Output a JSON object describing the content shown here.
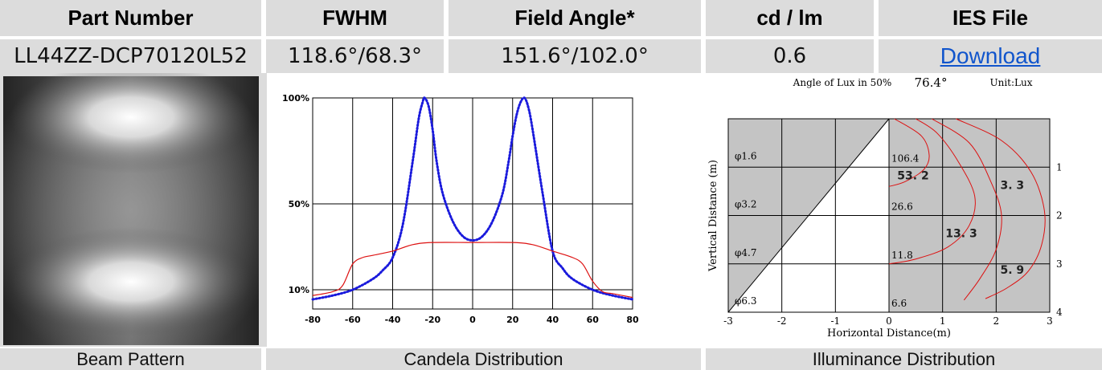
{
  "headers": {
    "part_number": "Part Number",
    "fwhm": "FWHM",
    "field_angle": "Field Angle*",
    "cd_lm": "cd / lm",
    "ies_file": "IES File"
  },
  "values": {
    "part_number": "LL44ZZ-DCP70120L52",
    "fwhm": "118.6°/68.3°",
    "field_angle": "151.6°/102.0°",
    "cd_lm": "0.6",
    "ies_file": "Download"
  },
  "footers": {
    "beam": "Beam Pattern",
    "candela": "Candela Distribution",
    "illuminance": "Illuminance Distribution"
  },
  "colors": {
    "header_bg": "#dcdcdc",
    "link": "#1155cc",
    "series_blue": "#1a1adc",
    "series_red": "#dd1111",
    "illum_shade": "#c4c4c4"
  },
  "chart_data": [
    {
      "type": "line",
      "panel": "candela",
      "title": "",
      "xlabel": "",
      "ylabel": "",
      "xlim": [
        -80,
        80
      ],
      "x_ticks": [
        -80,
        -60,
        -40,
        -20,
        0,
        20,
        40,
        60,
        80
      ],
      "y_ticks": [
        {
          "value": 10,
          "label": "10%"
        },
        {
          "value": 50,
          "label": "50%"
        },
        {
          "value": 100,
          "label": "100%"
        }
      ],
      "grid": true,
      "series": [
        {
          "color": "#1a1adc",
          "style": "dotted",
          "x": [
            -80,
            -70,
            -60,
            -50,
            -45,
            -40,
            -35,
            -30,
            -27,
            -25,
            -24,
            -22,
            -20,
            -18,
            -15,
            -10,
            -5,
            0,
            5,
            10,
            15,
            18,
            20,
            22,
            24,
            26,
            28,
            30,
            35,
            40,
            45,
            50,
            60,
            70,
            80
          ],
          "y": [
            5,
            7,
            10,
            15,
            19,
            25,
            40,
            70,
            90,
            98,
            100,
            96,
            85,
            70,
            55,
            42,
            35,
            33,
            35,
            42,
            55,
            70,
            82,
            92,
            98,
            100,
            95,
            85,
            55,
            28,
            20,
            15,
            10,
            7,
            5
          ]
        },
        {
          "color": "#dd1111",
          "style": "solid",
          "x": [
            -80,
            -70,
            -65,
            -60,
            -55,
            -50,
            -40,
            -30,
            -20,
            0,
            20,
            30,
            40,
            50,
            55,
            60,
            65,
            70,
            80
          ],
          "y": [
            7,
            9,
            12,
            22,
            25,
            26,
            28,
            31,
            32,
            32,
            32,
            31,
            28,
            25,
            22,
            14,
            9,
            8,
            6
          ]
        }
      ]
    },
    {
      "type": "line",
      "panel": "illuminance",
      "title": "Angle of Lux in 50%",
      "angle_value": "76.4°",
      "unit": "Unit:Lux",
      "xlabel": "Horizontal Distance(m)",
      "ylabel": "Vertical Distance (m)",
      "xlim": [
        -3,
        3
      ],
      "ylim": [
        0,
        4
      ],
      "x_ticks": [
        "-3",
        "-2",
        "-1",
        "0",
        "1",
        "2",
        "3"
      ],
      "y_ticks": [
        "1",
        "2",
        "3",
        "4"
      ],
      "diameters": [
        {
          "depth": 1,
          "label": "φ1.6"
        },
        {
          "depth": 2,
          "label": "φ3.2"
        },
        {
          "depth": 3,
          "label": "φ4.7"
        },
        {
          "depth": 4,
          "label": "φ6.3"
        }
      ],
      "center_lux": [
        {
          "depth": 1,
          "label": "106.4"
        },
        {
          "depth": 2,
          "label": "26.6"
        },
        {
          "depth": 3,
          "label": "11.8"
        },
        {
          "depth": 4,
          "label": "6.6"
        }
      ],
      "contour_labels": [
        {
          "x": 0.45,
          "y": 1.25,
          "label": "53. 2"
        },
        {
          "x": 1.35,
          "y": 2.45,
          "label": "13. 3"
        },
        {
          "x": 2.3,
          "y": 3.2,
          "label": "5. 9"
        },
        {
          "x": 2.3,
          "y": 1.45,
          "label": "3. 3"
        }
      ],
      "contours": [
        {
          "x": [
            0.1,
            0.6,
            0.75,
            0.65,
            0.3,
            0.0
          ],
          "y": [
            0.0,
            0.35,
            0.75,
            1.05,
            1.3,
            1.4
          ]
        },
        {
          "x": [
            0.5,
            0.9,
            1.3,
            1.6,
            1.5,
            1.1,
            0.5,
            0.0
          ],
          "y": [
            0.0,
            0.3,
            0.9,
            1.6,
            2.2,
            2.65,
            2.9,
            3.0
          ]
        },
        {
          "x": [
            0.8,
            1.5,
            1.9,
            2.1,
            2.0,
            1.7,
            1.4
          ],
          "y": [
            0.0,
            0.5,
            1.3,
            2.0,
            2.7,
            3.3,
            3.75
          ]
        },
        {
          "x": [
            1.25,
            2.1,
            2.65,
            2.9,
            2.85,
            2.6,
            2.2,
            1.8
          ],
          "y": [
            0.0,
            0.45,
            1.1,
            1.9,
            2.6,
            3.15,
            3.5,
            3.72
          ]
        }
      ]
    }
  ]
}
